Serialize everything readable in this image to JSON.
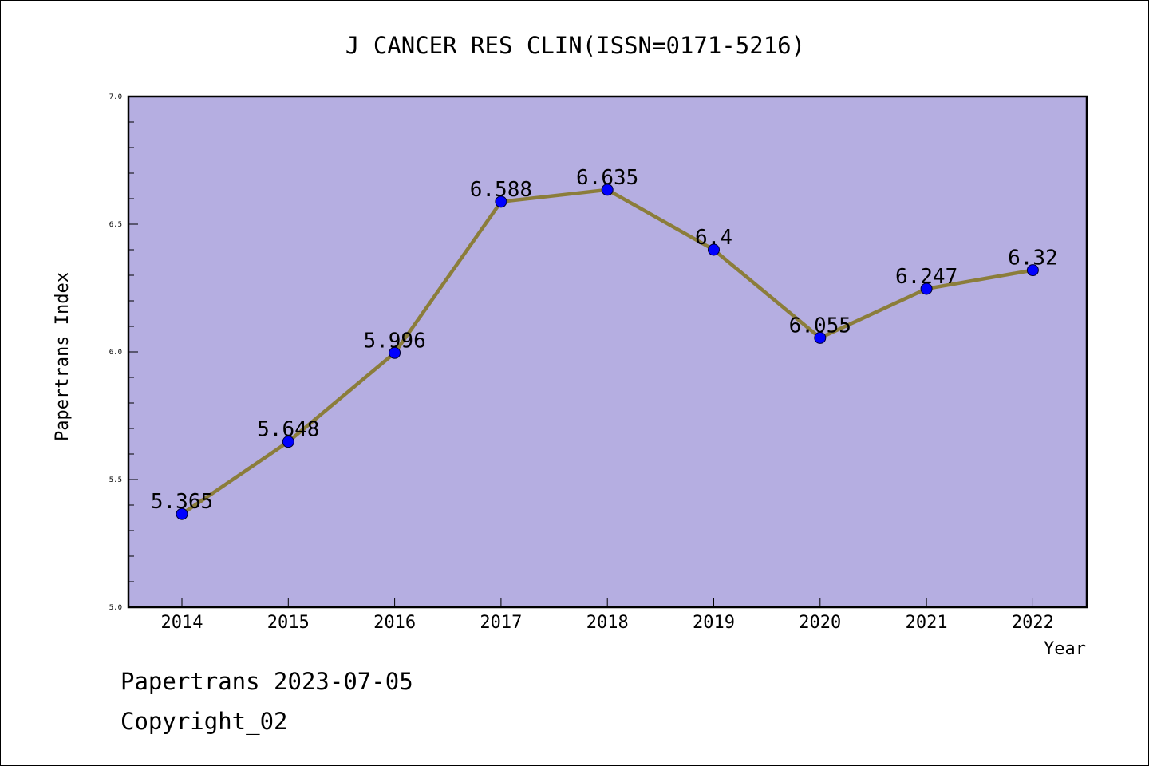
{
  "chart_data": {
    "type": "line",
    "title": "J CANCER RES CLIN(ISSN=0171-5216)",
    "xlabel": "Year",
    "ylabel": "Papertrans Index",
    "categories": [
      "2014",
      "2015",
      "2016",
      "2017",
      "2018",
      "2019",
      "2020",
      "2021",
      "2022"
    ],
    "values": [
      5.365,
      5.648,
      5.996,
      6.588,
      6.635,
      6.4,
      6.055,
      6.247,
      6.32
    ],
    "data_labels": [
      "5.365",
      "5.648",
      "5.996",
      "6.588",
      "6.635",
      "6.4",
      "6.055",
      "6.247",
      "6.32"
    ],
    "ylim": [
      5.0,
      7.0
    ],
    "yticks": [
      "5.0",
      "5.5",
      "6.0",
      "6.5",
      "7.0"
    ],
    "grid": false,
    "colors": {
      "plot_background": "#b5aee1",
      "line": "#8b7d3a",
      "marker": "#0000ff"
    }
  },
  "footer": {
    "date_line": "Papertrans 2023-07-05",
    "copyright": "Copyright_02"
  }
}
